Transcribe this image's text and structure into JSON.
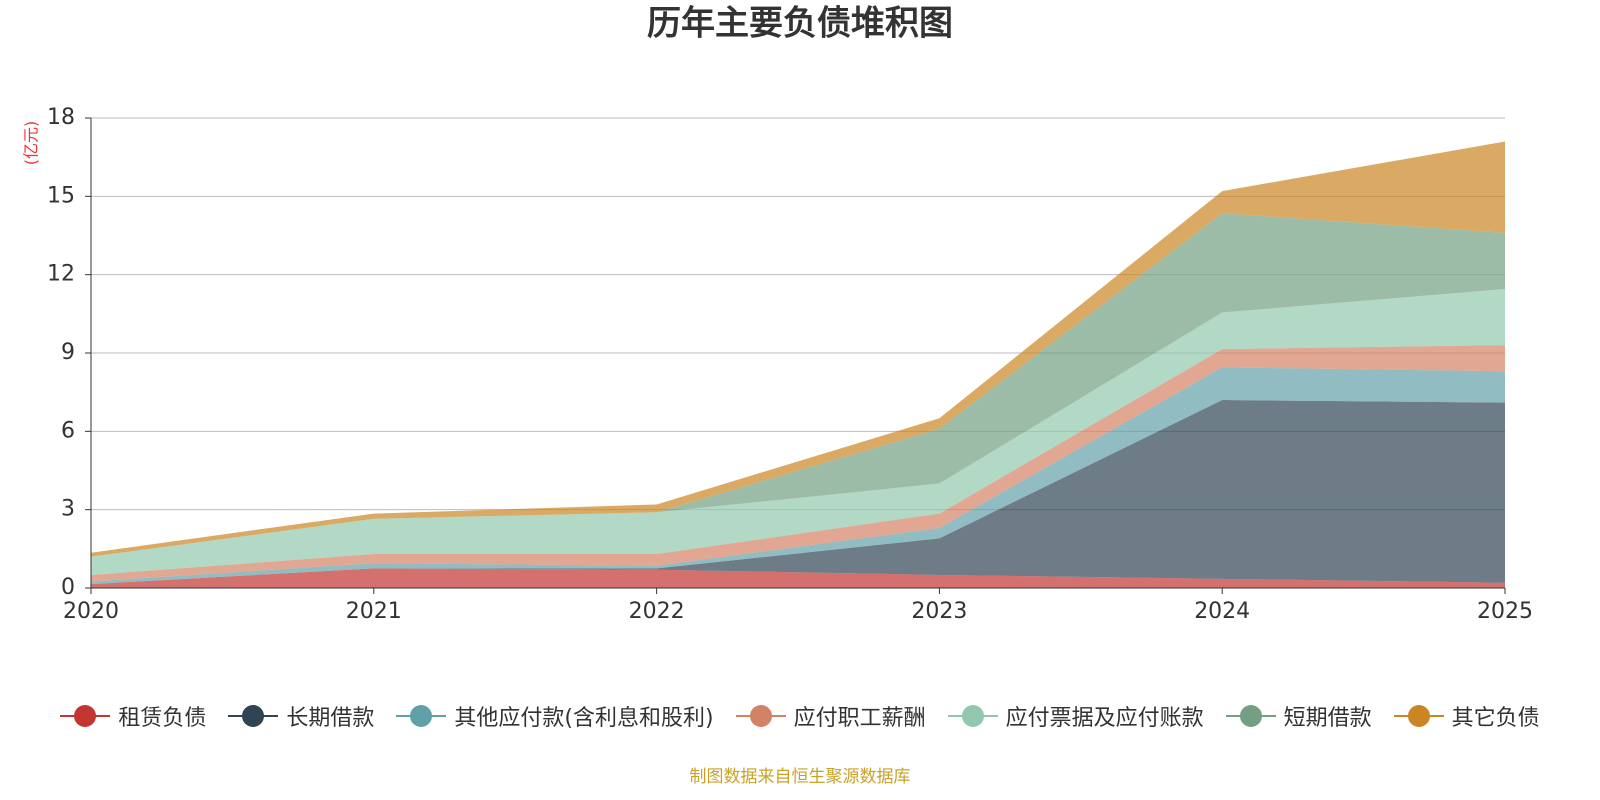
{
  "chart_data": {
    "type": "stacked_area",
    "title": "历年主要负债堆积图",
    "y_unit": "(亿元)",
    "categories": [
      "2020",
      "2021",
      "2022",
      "2023",
      "2024",
      "2025"
    ],
    "series": [
      {
        "name": "租赁负债",
        "color": "#c23531",
        "values": [
          0.15,
          0.75,
          0.7,
          0.5,
          0.35,
          0.2
        ]
      },
      {
        "name": "长期借款",
        "color": "#2f4554",
        "values": [
          0,
          0,
          0.05,
          1.4,
          6.85,
          6.9
        ]
      },
      {
        "name": "其他应付款(含利息和股利)",
        "color": "#61a0a8",
        "values": [
          0.1,
          0.2,
          0.1,
          0.4,
          1.25,
          1.2
        ]
      },
      {
        "name": "应付职工薪酬",
        "color": "#d48265",
        "values": [
          0.25,
          0.35,
          0.45,
          0.55,
          0.7,
          1.0
        ]
      },
      {
        "name": "应付票据及应付账款",
        "color": "#91c7ae",
        "values": [
          0.7,
          1.35,
          1.6,
          1.15,
          1.4,
          2.15
        ]
      },
      {
        "name": "短期借款",
        "color": "#749f83",
        "values": [
          0,
          0,
          0,
          2.1,
          3.8,
          2.15
        ]
      },
      {
        "name": "其它负债",
        "color": "#ca8622",
        "values": [
          0.15,
          0.2,
          0.3,
          0.4,
          0.85,
          3.5
        ]
      }
    ],
    "ylim": [
      0,
      18
    ],
    "yticks": [
      0,
      3,
      6,
      9,
      12,
      15,
      18
    ],
    "grid": true,
    "source": "制图数据来自恒生聚源数据库"
  }
}
